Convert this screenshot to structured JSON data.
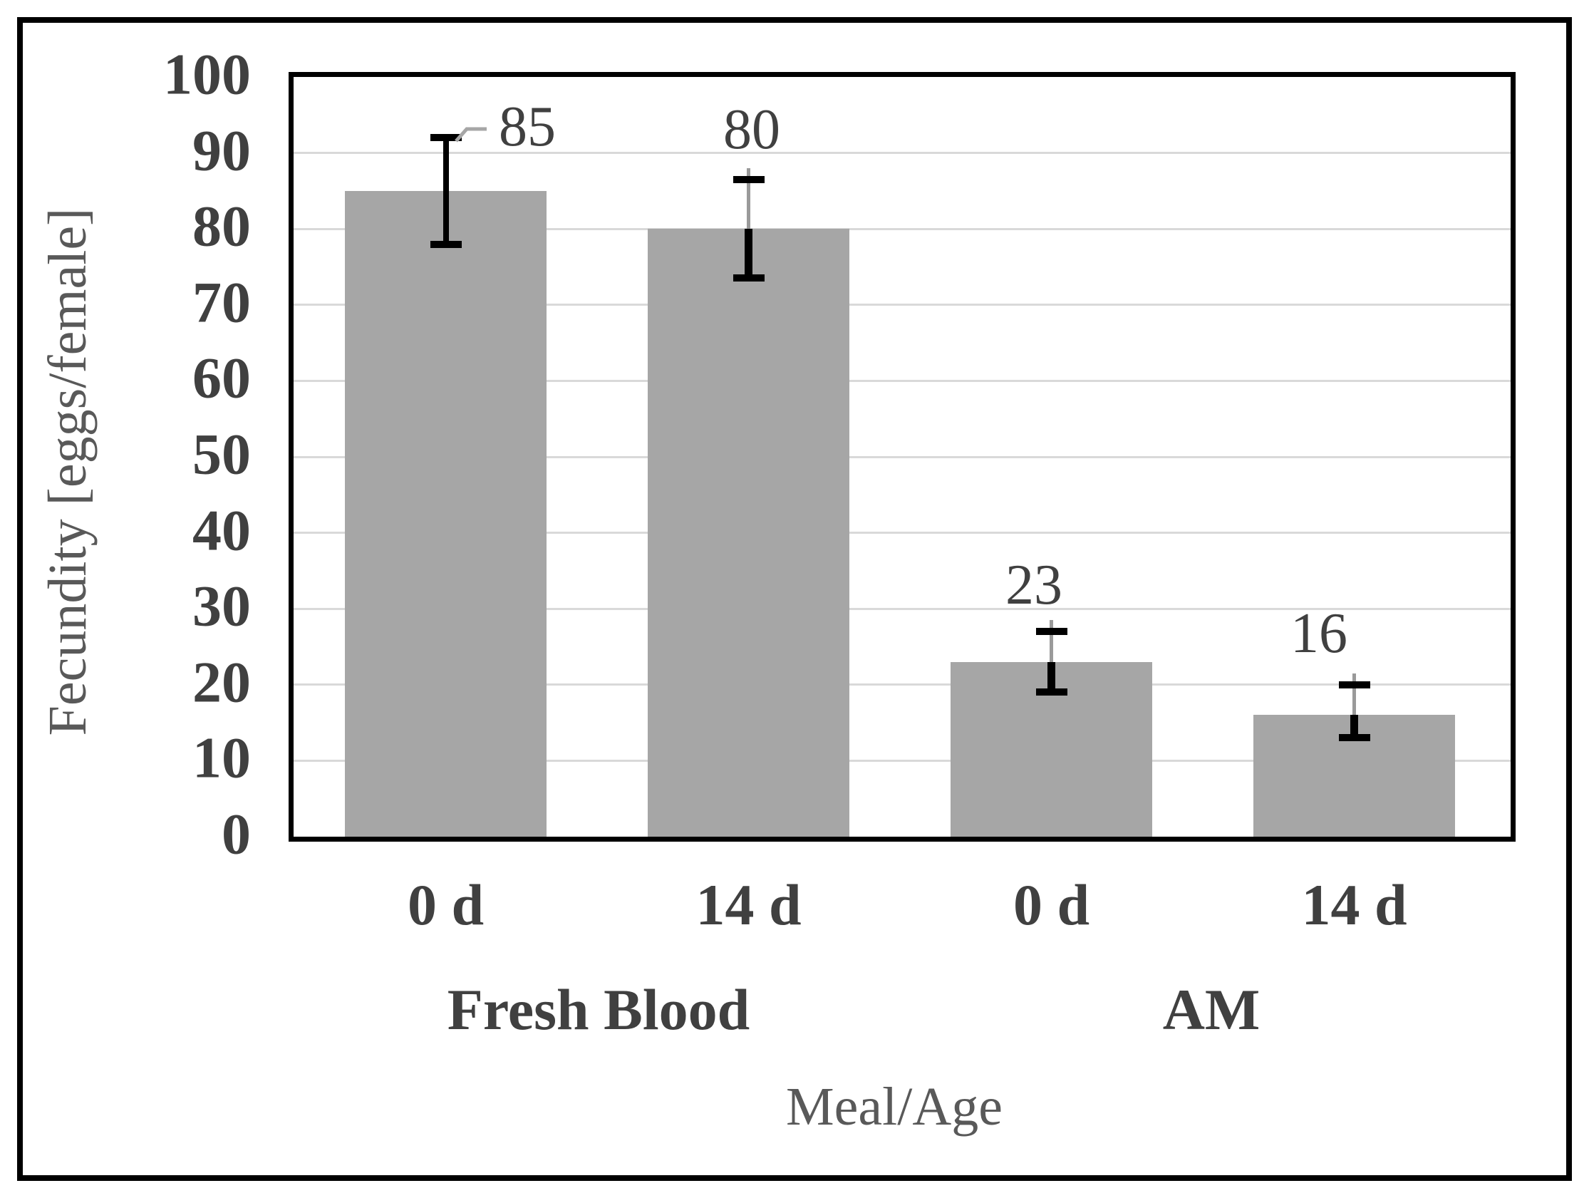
{
  "chart_data": {
    "type": "bar",
    "title": "",
    "ylabel": "Fecundity [eggs/female]",
    "xlabel": "Meal/Age",
    "ylim": [
      0,
      100
    ],
    "yticks": [
      0,
      10,
      20,
      30,
      40,
      50,
      60,
      70,
      80,
      90,
      100
    ],
    "grid": {
      "horizontal": true,
      "interval": 10
    },
    "legend": "none",
    "categories": [
      "0 d",
      "14 d",
      "0 d",
      "14 d"
    ],
    "groups": [
      {
        "label": "Fresh Blood",
        "categories": [
          "0 d",
          "14 d"
        ]
      },
      {
        "label": "AM",
        "categories": [
          "0 d",
          "14 d"
        ]
      }
    ],
    "series": [
      {
        "name": "Fecundity",
        "values": [
          85,
          80,
          23,
          16
        ],
        "data_labels": [
          "85",
          "80",
          "23",
          "16"
        ],
        "error_bars": {
          "upper": [
            92,
            86.5,
            27,
            20
          ],
          "lower": [
            78,
            73.5,
            19,
            13
          ]
        }
      }
    ],
    "colors": {
      "bar": "#a6a6a6",
      "gridline": "#d9d9d9",
      "axis": "#000000",
      "tick_label": "#404040",
      "axis_title": "#595959",
      "data_label": "#404040",
      "error_bar": "#000000",
      "leader_line": "#a6a6a6"
    }
  }
}
